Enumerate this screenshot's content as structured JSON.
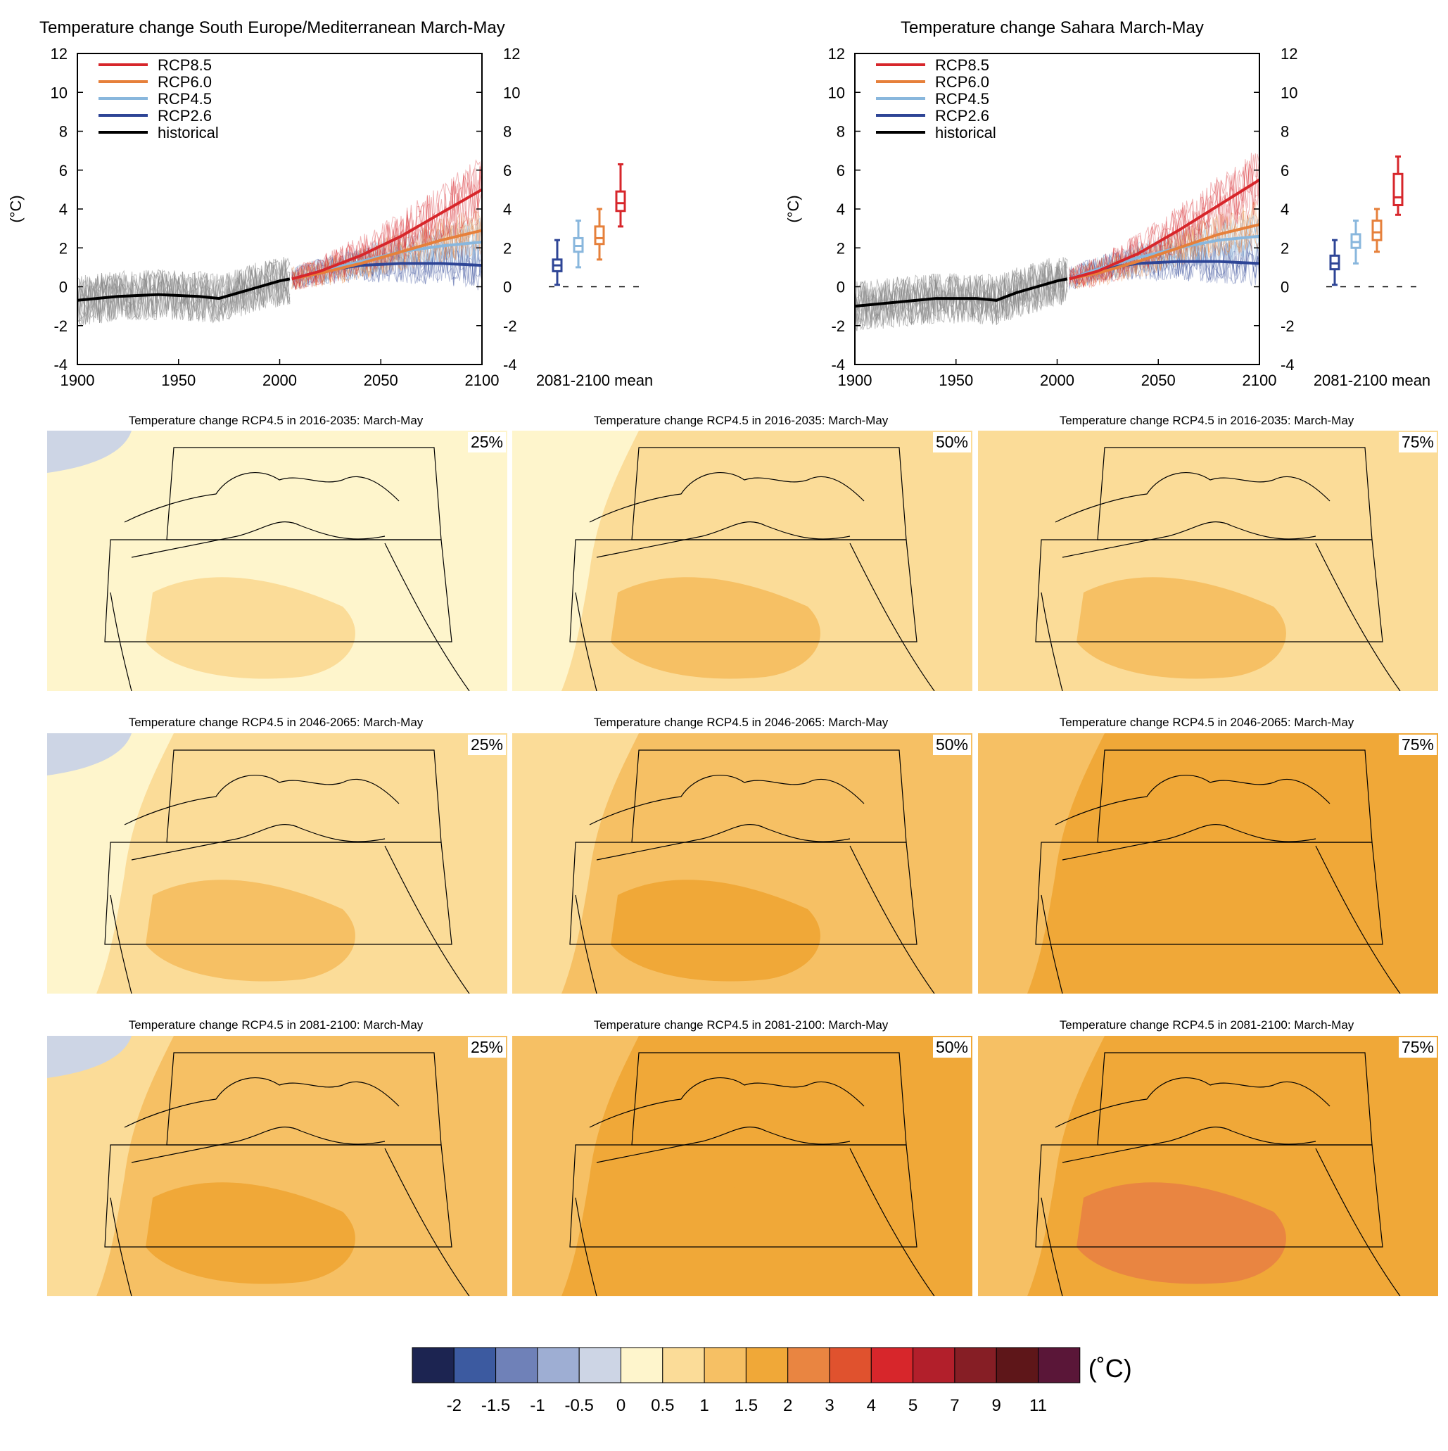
{
  "colors": {
    "rcp85": "#d7262b",
    "rcp60": "#e6803b",
    "rcp45": "#89b7dd",
    "rcp26": "#2e4596",
    "historical": "#000000",
    "ensemble_hist": "#8a8a8a"
  },
  "scale_bins": [
    "#1c2451",
    "#3c5aa0",
    "#6f81b8",
    "#9eaed3",
    "#cdd5e5",
    "#fef5cc",
    "#fbdc98",
    "#f6c064",
    "#f0a838",
    "#e98541",
    "#e0522e",
    "#d7262b",
    "#b21f2b",
    "#861e25",
    "#5e1619",
    "#5a1638"
  ],
  "chart_data": [
    {
      "type": "line",
      "title": "Temperature change South Europe/Mediterranean March-May",
      "ylabel": "(°C)",
      "xlim": [
        1900,
        2100
      ],
      "ylim": [
        -4,
        12
      ],
      "xticks": [
        "1900",
        "1950",
        "2000",
        "2050",
        "2100"
      ],
      "yticks": [
        "-4",
        "-2",
        "0",
        "2",
        "4",
        "6",
        "8",
        "10",
        "12"
      ],
      "series": [
        {
          "name": "RCP8.5",
          "x": [
            2006,
            2020,
            2040,
            2060,
            2080,
            2100
          ],
          "values": [
            0.4,
            0.8,
            1.6,
            2.6,
            3.8,
            5.0
          ]
        },
        {
          "name": "RCP6.0",
          "x": [
            2006,
            2020,
            2040,
            2060,
            2080,
            2100
          ],
          "values": [
            0.4,
            0.7,
            1.2,
            1.8,
            2.4,
            2.9
          ]
        },
        {
          "name": "RCP4.5",
          "x": [
            2006,
            2020,
            2040,
            2060,
            2080,
            2100
          ],
          "values": [
            0.4,
            0.8,
            1.3,
            1.8,
            2.1,
            2.3
          ]
        },
        {
          "name": "RCP2.6",
          "x": [
            2006,
            2020,
            2040,
            2060,
            2080,
            2100
          ],
          "values": [
            0.4,
            0.8,
            1.1,
            1.2,
            1.2,
            1.1
          ]
        },
        {
          "name": "historical",
          "x": [
            1900,
            1920,
            1940,
            1960,
            1970,
            1980,
            1990,
            2000,
            2005
          ],
          "values": [
            -0.7,
            -0.5,
            -0.4,
            -0.5,
            -0.6,
            -0.3,
            0.0,
            0.3,
            0.4
          ]
        }
      ],
      "box_label": "2081-2100 mean",
      "boxes": [
        {
          "name": "RCP2.6",
          "min": 0.1,
          "q1": 0.8,
          "median": 1.1,
          "q3": 1.4,
          "max": 2.4
        },
        {
          "name": "RCP4.5",
          "min": 1.0,
          "q1": 1.8,
          "median": 2.1,
          "q3": 2.5,
          "max": 3.4
        },
        {
          "name": "RCP6.0",
          "min": 1.4,
          "q1": 2.2,
          "median": 2.5,
          "q3": 3.1,
          "max": 4.0
        },
        {
          "name": "RCP8.5",
          "min": 3.1,
          "q1": 3.9,
          "median": 4.3,
          "q3": 4.9,
          "max": 6.3
        }
      ]
    },
    {
      "type": "line",
      "title": "Temperature change Sahara March-May",
      "ylabel": "(°C)",
      "xlim": [
        1900,
        2100
      ],
      "ylim": [
        -4,
        12
      ],
      "xticks": [
        "1900",
        "1950",
        "2000",
        "2050",
        "2100"
      ],
      "yticks": [
        "-4",
        "-2",
        "0",
        "2",
        "4",
        "6",
        "8",
        "10",
        "12"
      ],
      "series": [
        {
          "name": "RCP8.5",
          "x": [
            2006,
            2020,
            2040,
            2060,
            2080,
            2100
          ],
          "values": [
            0.4,
            0.8,
            1.7,
            2.9,
            4.2,
            5.5
          ]
        },
        {
          "name": "RCP6.0",
          "x": [
            2006,
            2020,
            2040,
            2060,
            2080,
            2100
          ],
          "values": [
            0.4,
            0.7,
            1.3,
            2.0,
            2.7,
            3.2
          ]
        },
        {
          "name": "RCP4.5",
          "x": [
            2006,
            2020,
            2040,
            2060,
            2080,
            2100
          ],
          "values": [
            0.4,
            0.9,
            1.5,
            2.0,
            2.4,
            2.6
          ]
        },
        {
          "name": "RCP2.6",
          "x": [
            2006,
            2020,
            2040,
            2060,
            2080,
            2100
          ],
          "values": [
            0.4,
            0.9,
            1.2,
            1.3,
            1.3,
            1.2
          ]
        },
        {
          "name": "historical",
          "x": [
            1900,
            1920,
            1940,
            1960,
            1970,
            1980,
            1990,
            2000,
            2005
          ],
          "values": [
            -1.0,
            -0.8,
            -0.6,
            -0.6,
            -0.7,
            -0.3,
            0.0,
            0.3,
            0.4
          ]
        }
      ],
      "box_label": "2081-2100 mean",
      "boxes": [
        {
          "name": "RCP2.6",
          "min": 0.1,
          "q1": 0.9,
          "median": 1.2,
          "q3": 1.6,
          "max": 2.4
        },
        {
          "name": "RCP4.5",
          "min": 1.2,
          "q1": 2.0,
          "median": 2.3,
          "q3": 2.7,
          "max": 3.4
        },
        {
          "name": "RCP6.0",
          "min": 1.8,
          "q1": 2.4,
          "median": 2.8,
          "q3": 3.4,
          "max": 4.0
        },
        {
          "name": "RCP8.5",
          "min": 3.7,
          "q1": 4.2,
          "median": 4.6,
          "q3": 5.8,
          "max": 6.7
        }
      ]
    },
    {
      "type": "heatmap",
      "maps": [
        {
          "title": "Temperature change RCP4.5 in 2016-2035: March-May",
          "percentile": "25%",
          "period": "2016-2035",
          "levels": [
            0.5,
            0.5,
            1.0
          ]
        },
        {
          "title": "Temperature change RCP4.5 in 2016-2035: March-May",
          "percentile": "50%",
          "period": "2016-2035",
          "levels": [
            0.5,
            1.0,
            1.5
          ]
        },
        {
          "title": "Temperature change RCP4.5 in 2016-2035: March-May",
          "percentile": "75%",
          "period": "2016-2035",
          "levels": [
            1.0,
            1.0,
            1.5
          ]
        },
        {
          "title": "Temperature change RCP4.5 in 2046-2065: March-May",
          "percentile": "25%",
          "period": "2046-2065",
          "levels": [
            0.5,
            1.0,
            1.5
          ]
        },
        {
          "title": "Temperature change RCP4.5 in 2046-2065: March-May",
          "percentile": "50%",
          "period": "2046-2065",
          "levels": [
            1.0,
            1.5,
            2.0
          ]
        },
        {
          "title": "Temperature change RCP4.5 in 2046-2065: March-May",
          "percentile": "75%",
          "period": "2046-2065",
          "levels": [
            1.5,
            2.0,
            2.0
          ]
        },
        {
          "title": "Temperature change RCP4.5 in 2081-2100: March-May",
          "percentile": "25%",
          "period": "2081-2100",
          "levels": [
            1.0,
            1.5,
            2.0
          ]
        },
        {
          "title": "Temperature change RCP4.5 in 2081-2100: March-May",
          "percentile": "50%",
          "period": "2081-2100",
          "levels": [
            1.5,
            2.0,
            2.0
          ]
        },
        {
          "title": "Temperature change RCP4.5 in 2081-2100: March-May",
          "percentile": "75%",
          "period": "2081-2100",
          "levels": [
            1.5,
            2.0,
            3.0
          ]
        }
      ],
      "colorbar_ticks": [
        "-2",
        "-1.5",
        "-1",
        "-0.5",
        "0",
        "0.5",
        "1",
        "1.5",
        "2",
        "3",
        "4",
        "5",
        "7",
        "9",
        "11"
      ],
      "colorbar_unit": "(˚C)"
    }
  ]
}
